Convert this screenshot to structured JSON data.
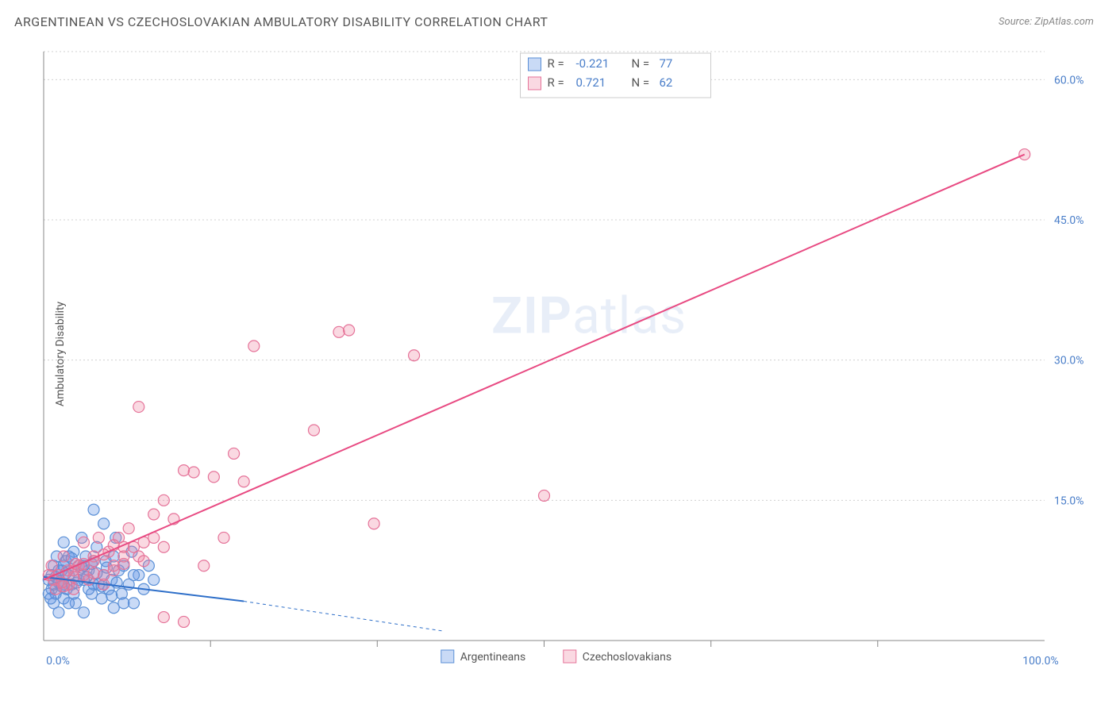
{
  "title": "ARGENTINEAN VS CZECHOSLOVAKIAN AMBULATORY DISABILITY CORRELATION CHART",
  "source": "Source: ZipAtlas.com",
  "ylabel": "Ambulatory Disability",
  "watermark_bold": "ZIP",
  "watermark_rest": "atlas",
  "chart": {
    "type": "scatter",
    "background_color": "#ffffff",
    "grid_color": "#d0d0d0",
    "axis_color": "#888888",
    "label_color": "#4a7ec9",
    "xlim": [
      0,
      100
    ],
    "ylim": [
      0,
      63
    ],
    "ytick_step": 15,
    "ytick_labels": [
      "15.0%",
      "30.0%",
      "45.0%",
      "60.0%"
    ],
    "xtick_positions": [
      0,
      100
    ],
    "xtick_labels": [
      "0.0%",
      "100.0%"
    ],
    "xtick_minor": [
      16.67,
      33.33,
      50,
      66.67,
      83.33
    ],
    "series": [
      {
        "name": "Argentineans",
        "color_fill": "rgba(100,150,230,0.35)",
        "color_stroke": "#5a8fd6",
        "marker_radius": 7,
        "r_value": "-0.221",
        "n_value": "77",
        "trend": {
          "x1": 0,
          "y1": 6.8,
          "x2": 20,
          "y2": 4.2,
          "dash_x2": 40,
          "dash_y2": 1.0,
          "color": "#2e6fc9",
          "width": 2
        },
        "points": [
          [
            0.5,
            6.5
          ],
          [
            0.8,
            7.0
          ],
          [
            1.0,
            8.0
          ],
          [
            1.2,
            5.0
          ],
          [
            1.5,
            6.2
          ],
          [
            1.3,
            9.0
          ],
          [
            1.8,
            7.5
          ],
          [
            2.0,
            4.5
          ],
          [
            2.2,
            8.5
          ],
          [
            2.0,
            10.5
          ],
          [
            2.5,
            7.0
          ],
          [
            2.3,
            5.5
          ],
          [
            2.8,
            6.0
          ],
          [
            3.0,
            9.5
          ],
          [
            3.5,
            8.0
          ],
          [
            3.2,
            4.0
          ],
          [
            3.8,
            11.0
          ],
          [
            4.0,
            6.5
          ],
          [
            4.0,
            3.0
          ],
          [
            4.5,
            7.5
          ],
          [
            4.2,
            9.0
          ],
          [
            4.8,
            5.0
          ],
          [
            5.0,
            8.5
          ],
          [
            5.0,
            14.0
          ],
          [
            5.5,
            6.0
          ],
          [
            5.3,
            10.0
          ],
          [
            5.8,
            4.5
          ],
          [
            6.0,
            7.0
          ],
          [
            6.0,
            12.5
          ],
          [
            6.5,
            5.5
          ],
          [
            6.2,
            8.5
          ],
          [
            6.8,
            6.5
          ],
          [
            7.0,
            9.0
          ],
          [
            7.0,
            3.5
          ],
          [
            7.5,
            7.5
          ],
          [
            7.2,
            11.0
          ],
          [
            7.8,
            5.0
          ],
          [
            8.0,
            8.0
          ],
          [
            8.5,
            6.0
          ],
          [
            8.8,
            9.5
          ],
          [
            9.0,
            4.0
          ],
          [
            9.5,
            7.0
          ],
          [
            10.0,
            5.5
          ],
          [
            10.5,
            8.0
          ],
          [
            11.0,
            6.5
          ],
          [
            8.0,
            4.0
          ],
          [
            9.0,
            7.0
          ],
          [
            1.0,
            4.0
          ],
          [
            1.5,
            3.0
          ],
          [
            2.0,
            6.0
          ],
          [
            3.0,
            5.0
          ],
          [
            3.5,
            6.5
          ],
          [
            2.5,
            4.0
          ],
          [
            4.5,
            5.5
          ],
          [
            5.0,
            6.0
          ],
          [
            0.8,
            5.5
          ],
          [
            1.0,
            6.0
          ],
          [
            1.5,
            7.5
          ],
          [
            2.0,
            8.0
          ],
          [
            2.5,
            9.0
          ],
          [
            3.0,
            7.5
          ],
          [
            4.0,
            8.0
          ],
          [
            0.5,
            5.0
          ],
          [
            0.7,
            4.5
          ],
          [
            1.2,
            6.8
          ],
          [
            1.8,
            5.8
          ],
          [
            2.2,
            7.2
          ],
          [
            2.8,
            8.8
          ],
          [
            3.3,
            6.2
          ],
          [
            3.8,
            7.8
          ],
          [
            4.3,
            6.8
          ],
          [
            4.8,
            8.2
          ],
          [
            5.3,
            7.2
          ],
          [
            5.8,
            5.8
          ],
          [
            6.3,
            7.8
          ],
          [
            6.8,
            4.8
          ],
          [
            7.3,
            6.2
          ]
        ]
      },
      {
        "name": "Czechoslovakians",
        "color_fill": "rgba(240,130,160,0.30)",
        "color_stroke": "#e57399",
        "marker_radius": 7,
        "r_value": "0.721",
        "n_value": "62",
        "trend": {
          "x1": 0,
          "y1": 6.5,
          "x2": 98,
          "y2": 52,
          "color": "#e84a82",
          "width": 2
        },
        "points": [
          [
            98,
            52
          ],
          [
            50,
            15.5
          ],
          [
            33,
            12.5
          ],
          [
            37,
            30.5
          ],
          [
            29.5,
            33
          ],
          [
            30.5,
            33.2
          ],
          [
            21,
            31.5
          ],
          [
            27,
            22.5
          ],
          [
            19,
            20
          ],
          [
            15,
            18
          ],
          [
            17,
            17.5
          ],
          [
            14,
            18.2
          ],
          [
            13,
            13
          ],
          [
            12,
            15
          ],
          [
            11,
            13.5
          ],
          [
            10,
            10.5
          ],
          [
            9.5,
            25
          ],
          [
            9.5,
            9
          ],
          [
            8.5,
            12
          ],
          [
            8,
            10
          ],
          [
            7.5,
            11
          ],
          [
            7,
            8
          ],
          [
            6.5,
            9.5
          ],
          [
            6,
            7
          ],
          [
            5.5,
            11
          ],
          [
            5,
            9
          ],
          [
            4.5,
            6.5
          ],
          [
            4,
            10.5
          ],
          [
            3.5,
            8
          ],
          [
            3,
            7.5
          ],
          [
            2.5,
            6
          ],
          [
            2,
            9
          ],
          [
            1.5,
            7
          ],
          [
            1,
            6.5
          ],
          [
            0.8,
            8
          ],
          [
            0.5,
            7
          ],
          [
            14,
            2.0
          ],
          [
            12,
            2.5
          ],
          [
            16,
            8
          ],
          [
            18,
            11
          ],
          [
            20,
            17
          ],
          [
            3,
            5.5
          ],
          [
            4,
            7
          ],
          [
            5,
            8.5
          ],
          [
            6,
            6
          ],
          [
            7,
            7.5
          ],
          [
            8,
            9
          ],
          [
            9,
            10
          ],
          [
            10,
            8.5
          ],
          [
            11,
            11
          ],
          [
            12,
            10
          ],
          [
            2,
            5.8
          ],
          [
            3,
            6.8
          ],
          [
            4,
            8.2
          ],
          [
            5,
            7.2
          ],
          [
            6,
            9.2
          ],
          [
            7,
            10.2
          ],
          [
            8,
            8.2
          ],
          [
            1.2,
            5.5
          ],
          [
            1.8,
            6.2
          ],
          [
            2.4,
            7.5
          ],
          [
            3.2,
            8.2
          ]
        ]
      }
    ],
    "legend": {
      "items": [
        {
          "label": "Argentineans",
          "fill": "rgba(100,150,230,0.35)",
          "stroke": "#5a8fd6"
        },
        {
          "label": "Czechoslovakians",
          "fill": "rgba(240,130,160,0.30)",
          "stroke": "#e57399"
        }
      ]
    }
  }
}
